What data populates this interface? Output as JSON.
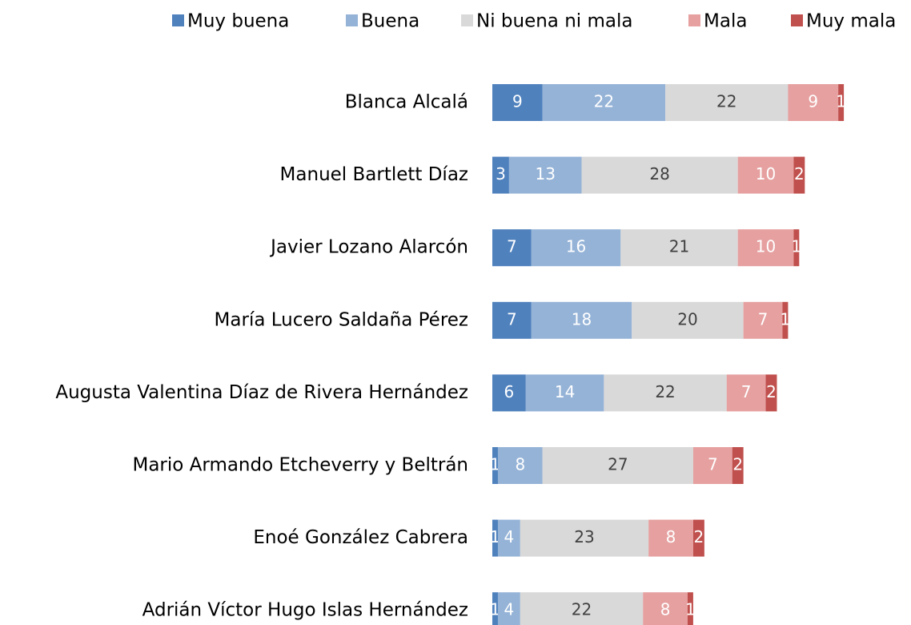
{
  "chart_data": {
    "type": "stacked-bar-horizontal",
    "categories": [
      "Blanca Alcalá",
      "Manuel Bartlett Díaz",
      "Javier Lozano Alarcón",
      "María Lucero Saldaña Pérez",
      "Augusta Valentina Díaz de Rivera Hernández",
      "Mario Armando Etcheverry y Beltrán",
      "Enoé González Cabrera",
      "Adrián Víctor Hugo Islas Hernández"
    ],
    "series": [
      {
        "name": "Muy buena",
        "color": "#4f81bd",
        "values": [
          9,
          3,
          7,
          7,
          6,
          1,
          1,
          1
        ]
      },
      {
        "name": "Buena",
        "color": "#95b3d7",
        "values": [
          22,
          13,
          16,
          18,
          14,
          8,
          4,
          4
        ]
      },
      {
        "name": "Ni buena ni mala",
        "color": "#d9d9d9",
        "values": [
          22,
          28,
          21,
          20,
          22,
          27,
          23,
          22
        ]
      },
      {
        "name": "Mala",
        "color": "#e6a0a0",
        "values": [
          9,
          10,
          10,
          7,
          7,
          7,
          8,
          8
        ]
      },
      {
        "name": "Muy mala",
        "color": "#c0504d",
        "values": [
          1,
          2,
          1,
          1,
          2,
          2,
          2,
          1
        ]
      }
    ],
    "legend": "top"
  }
}
